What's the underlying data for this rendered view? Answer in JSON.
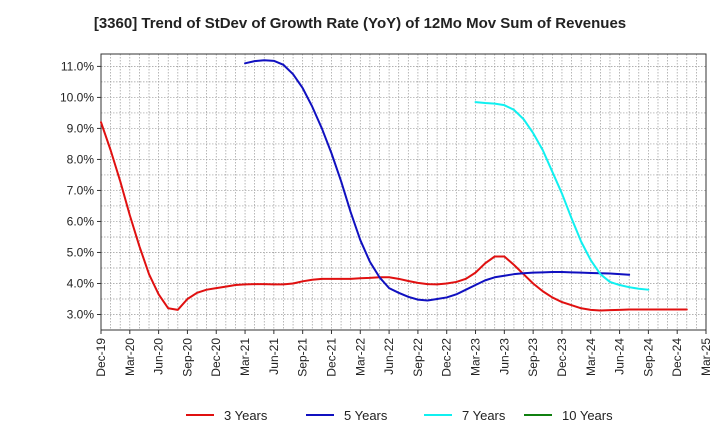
{
  "chart_data": {
    "type": "line",
    "title": "[3360]  Trend of StDev of Growth Rate (YoY) of 12Mo Mov Sum of Revenues",
    "xlabel": "",
    "ylabel": "",
    "grid": true,
    "legend_position": "bottom",
    "ylim": [
      2.5,
      11.4
    ],
    "y_ticks": [
      3.0,
      4.0,
      5.0,
      6.0,
      7.0,
      8.0,
      9.0,
      10.0,
      11.0
    ],
    "y_tick_labels": [
      "3.0%",
      "4.0%",
      "5.0%",
      "6.0%",
      "7.0%",
      "8.0%",
      "9.0%",
      "10.0%",
      "11.0%"
    ],
    "x_start": "Dec-19",
    "x_tick_labels": [
      "Dec-19",
      "Mar-20",
      "Jun-20",
      "Sep-20",
      "Dec-20",
      "Mar-21",
      "Jun-21",
      "Sep-21",
      "Dec-21",
      "Mar-22",
      "Jun-22",
      "Sep-22",
      "Dec-22",
      "Mar-23",
      "Jun-23",
      "Sep-23",
      "Dec-23",
      "Mar-24",
      "Jun-24",
      "Sep-24",
      "Dec-24",
      "Mar-25"
    ],
    "x_tick_step_months": 3,
    "series": [
      {
        "name": "3 Years",
        "color": "#e01010",
        "start_index": 0,
        "values": [
          9.2,
          8.3,
          7.3,
          6.2,
          5.2,
          4.3,
          3.65,
          3.2,
          3.15,
          3.5,
          3.7,
          3.8,
          3.85,
          3.9,
          3.95,
          3.97,
          3.98,
          3.98,
          3.97,
          3.97,
          4.0,
          4.07,
          4.12,
          4.15,
          4.15,
          4.15,
          4.15,
          4.17,
          4.18,
          4.2,
          4.2,
          4.15,
          4.08,
          4.02,
          3.98,
          3.97,
          4.0,
          4.05,
          4.15,
          4.35,
          4.65,
          4.87,
          4.87,
          4.6,
          4.3,
          4.0,
          3.75,
          3.55,
          3.4,
          3.3,
          3.2,
          3.15,
          3.13,
          3.14,
          3.15,
          3.16,
          3.16,
          3.16,
          3.16,
          3.16,
          3.16,
          3.16
        ]
      },
      {
        "name": "5 Years",
        "color": "#1010c0",
        "start_index": 15,
        "values": [
          11.1,
          11.17,
          11.2,
          11.18,
          11.05,
          10.75,
          10.3,
          9.7,
          9.0,
          8.2,
          7.3,
          6.3,
          5.4,
          4.7,
          4.2,
          3.85,
          3.7,
          3.57,
          3.48,
          3.45,
          3.5,
          3.55,
          3.65,
          3.8,
          3.95,
          4.1,
          4.2,
          4.25,
          4.3,
          4.33,
          4.35,
          4.36,
          4.37,
          4.37,
          4.36,
          4.35,
          4.34,
          4.33,
          4.32,
          4.3,
          4.28
        ]
      },
      {
        "name": "7 Years",
        "color": "#10f0f0",
        "start_index": 39,
        "values": [
          9.85,
          9.82,
          9.8,
          9.75,
          9.6,
          9.3,
          8.85,
          8.3,
          7.6,
          6.9,
          6.1,
          5.35,
          4.75,
          4.3,
          4.05,
          3.95,
          3.88,
          3.83,
          3.8
        ]
      },
      {
        "name": "10 Years",
        "color": "#108010",
        "start_index": 0,
        "values": []
      }
    ]
  }
}
